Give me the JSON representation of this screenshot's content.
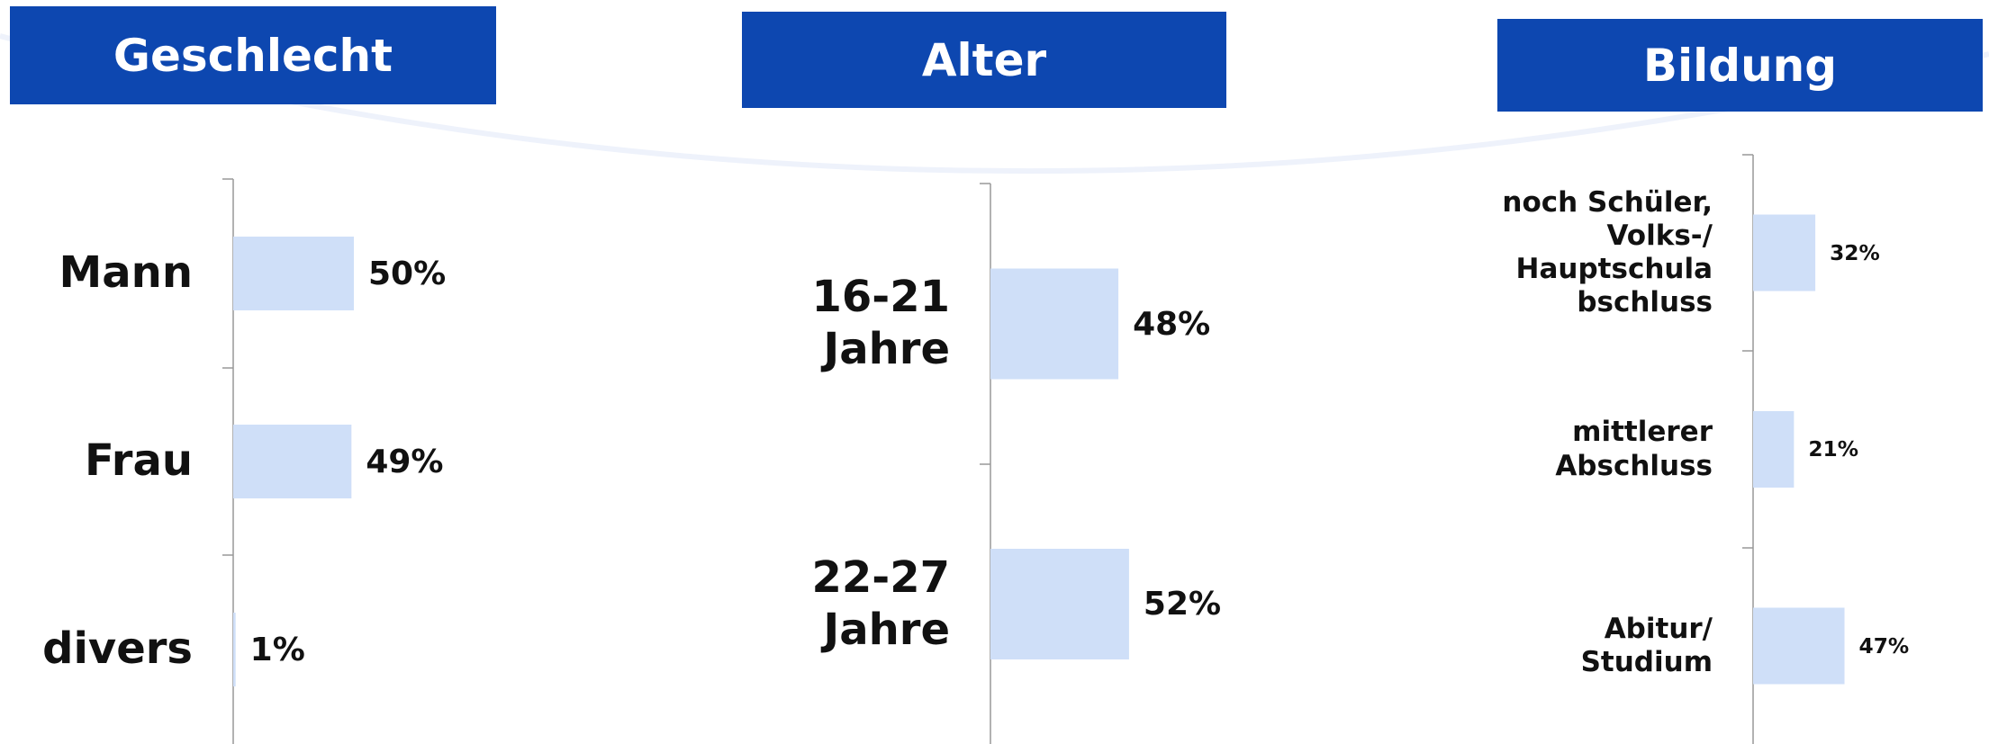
{
  "chart_data": [
    {
      "type": "bar",
      "title": "Geschlecht",
      "categories": [
        "Mann",
        "Frau",
        "divers"
      ],
      "values": [
        50,
        49,
        1
      ],
      "value_labels": [
        "50%",
        "49%",
        "1%"
      ],
      "color": "#cfdff8"
    },
    {
      "type": "bar",
      "title": "Alter",
      "categories": [
        "16-21\nJahre",
        "22-27\nJahre"
      ],
      "values": [
        48,
        52
      ],
      "value_labels": [
        "48%",
        "52%"
      ],
      "color": "#cfdff8"
    },
    {
      "type": "bar",
      "title": "Bildung",
      "categories": [
        "noch Schüler,\nVolks-/\nHauptschula\nbschluss",
        "mittlerer\nAbschluss",
        "Abitur/\nStudium"
      ],
      "values": [
        32,
        21,
        47
      ],
      "value_labels": [
        "32%",
        "21%",
        "47%"
      ],
      "color": "#cfdff8"
    }
  ]
}
